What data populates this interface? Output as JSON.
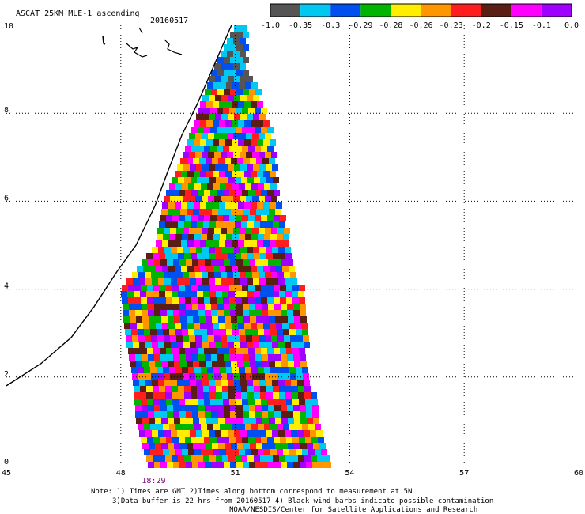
{
  "header": {
    "title": "ASCAT 25KM MLE-1 ascending",
    "date": "20160517"
  },
  "notes": {
    "line1": "Note: 1) Times are GMT 2)Times along bottom correspond to measurement at 5N",
    "line2": "3)Data buffer is 22 hrs from 20160517 4) Black wind barbs indicate possible contamination",
    "line3": "NOAA/NESDIS/Center for Satellite Applications and Research"
  },
  "colors": {
    "dark_gray": "#555555",
    "cyan": "#00c8f0",
    "blue": "#0050f0",
    "green": "#00b400",
    "yellow": "#ffee00",
    "orange": "#ff9600",
    "red": "#ff1e1e",
    "brown": "#5a1e14",
    "magenta": "#ff00ff",
    "purple": "#a000ff",
    "time_label": "#7a007a"
  },
  "chart_data": {
    "type": "heatmap",
    "title": "ASCAT 25KM MLE-1 ascending",
    "subtitle": "20160517",
    "xlim": [
      45,
      60
    ],
    "ylim": [
      0,
      10
    ],
    "x_ticks": [
      "45",
      "48",
      "51",
      "54",
      "57",
      "60"
    ],
    "y_ticks": [
      "0",
      "2",
      "4",
      "6",
      "8",
      "10"
    ],
    "grid": true,
    "time_label": "18:29",
    "time_label_x": 48.8,
    "colorbar": {
      "tick_labels": [
        "-1.0",
        "-0.35",
        "-0.3",
        "-0.29",
        "-0.28",
        "-0.26",
        "-0.23",
        "-0.2",
        "-0.15",
        "-0.1",
        "0.0"
      ],
      "colors": [
        "#555555",
        "#00c8f0",
        "#0050f0",
        "#00b400",
        "#ffee00",
        "#ff9600",
        "#ff1e1e",
        "#5a1e14",
        "#ff00ff",
        "#a000ff"
      ]
    },
    "swath": {
      "rows": [
        {
          "y": 10.0,
          "x_start": 51.0,
          "x_end": 51.3
        },
        {
          "y": 9.0,
          "x_start": 50.4,
          "x_end": 51.4
        },
        {
          "y": 8.0,
          "x_start": 50.0,
          "x_end": 51.9
        },
        {
          "y": 7.0,
          "x_start": 49.6,
          "x_end": 52.1
        },
        {
          "y": 6.0,
          "x_start": 49.1,
          "x_end": 52.2
        },
        {
          "y": 5.0,
          "x_start": 48.9,
          "x_end": 52.5
        },
        {
          "y": 4.0,
          "x_start": 48.0,
          "x_end": 52.8
        },
        {
          "y": 3.0,
          "x_start": 48.1,
          "x_end": 52.9
        },
        {
          "y": 2.0,
          "x_start": 48.3,
          "x_end": 53.0
        },
        {
          "y": 1.0,
          "x_start": 48.4,
          "x_end": 53.3
        },
        {
          "y": 0.0,
          "x_start": 48.7,
          "x_end": 53.5
        }
      ],
      "near_top_colors": [
        "#555555",
        "#00c8f0",
        "#0050f0"
      ]
    },
    "coastline": [
      [
        45.0,
        1.8
      ],
      [
        45.9,
        2.3
      ],
      [
        46.7,
        2.9
      ],
      [
        47.3,
        3.6
      ],
      [
        47.9,
        4.4
      ],
      [
        48.4,
        5.0
      ],
      [
        48.9,
        5.9
      ],
      [
        49.2,
        6.6
      ],
      [
        49.6,
        7.5
      ],
      [
        50.0,
        8.2
      ],
      [
        50.4,
        9.0
      ],
      [
        50.7,
        9.6
      ],
      [
        50.9,
        10.0
      ]
    ]
  }
}
